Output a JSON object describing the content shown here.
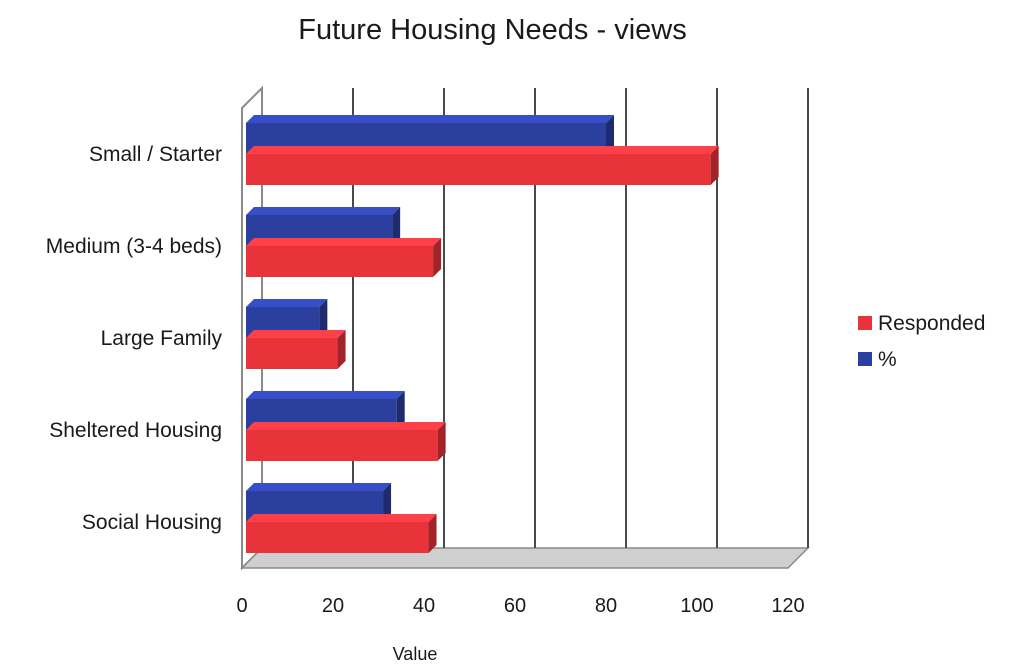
{
  "chart_data": {
    "type": "bar",
    "orientation": "horizontal",
    "title": "Future Housing Needs - views",
    "xlabel": "Value",
    "ylabel": "",
    "categories": [
      "Small / Starter",
      "Medium (3-4 beds)",
      "Large Family",
      "Sheltered Housing",
      "Social Housing"
    ],
    "series": [
      {
        "name": "%",
        "color": "#2b3f9e",
        "values": [
          80,
          33,
          17,
          34,
          31
        ]
      },
      {
        "name": "Responded",
        "color": "#e8333a",
        "values": [
          103,
          42,
          21,
          43,
          41
        ]
      }
    ],
    "xlim": [
      0,
      120
    ],
    "xticks": [
      "0",
      "20",
      "40",
      "60",
      "80",
      "100",
      "120"
    ],
    "grid": true,
    "legend": {
      "position": "right",
      "entries": [
        "Responded",
        "%"
      ]
    }
  }
}
